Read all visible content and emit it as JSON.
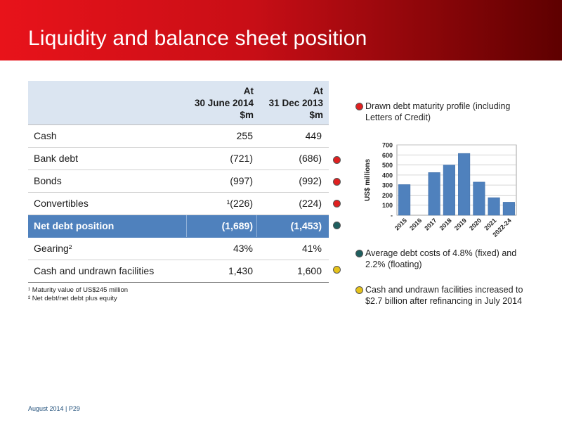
{
  "title": "Liquidity and balance sheet position",
  "table": {
    "headers": [
      {
        "line1": "At",
        "line2": "30 June 2014",
        "line3": "$m"
      },
      {
        "line1": "At",
        "line2": "31 Dec 2013",
        "line3": "$m"
      }
    ],
    "rows": [
      {
        "label": "Cash",
        "v1": "255",
        "v2": "449",
        "dot": ""
      },
      {
        "label": "Bank debt",
        "v1": "(721)",
        "v2": "(686)",
        "dot": "red"
      },
      {
        "label": "Bonds",
        "v1": "(997)",
        "v2": "(992)",
        "dot": "red"
      },
      {
        "label": "Convertibles",
        "v1": "¹(226)",
        "v2": "(224)",
        "dot": "red"
      },
      {
        "label": "Net debt position",
        "v1": "(1,689)",
        "v2": "(1,453)",
        "dot": "teal"
      },
      {
        "label": "Gearing²",
        "v1": "43%",
        "v2": "41%",
        "dot": ""
      },
      {
        "label": "Cash and undrawn facilities",
        "v1": "1,430",
        "v2": "1,600",
        "dot": "yellow"
      }
    ]
  },
  "footnotes": [
    "¹ Maturity value of US$245 million",
    "² Net debt/net debt plus equity"
  ],
  "bullets": [
    {
      "text": "Drawn debt maturity profile (including Letters of Credit)",
      "color": "red"
    },
    {
      "text": "Average debt costs of 4.8% (fixed) and 2.2% (floating)",
      "color": "teal"
    },
    {
      "text": "Cash and undrawn facilities increased to $2.7 billion after refinancing in July 2014",
      "color": "yellow"
    }
  ],
  "chart_data": {
    "type": "bar",
    "categories": [
      "2015",
      "2016",
      "2017",
      "2018",
      "2019",
      "2020",
      "2021",
      "2022-24"
    ],
    "values": [
      305,
      0,
      425,
      500,
      615,
      330,
      175,
      130
    ],
    "ylabel": "US$ millions",
    "ylim": [
      0,
      700
    ],
    "yticks": [
      "-",
      "100",
      "200",
      "300",
      "400",
      "500",
      "600",
      "700"
    ],
    "grid": true,
    "bar_color": "#4f81bd"
  },
  "footer": "August 2014 | P29"
}
